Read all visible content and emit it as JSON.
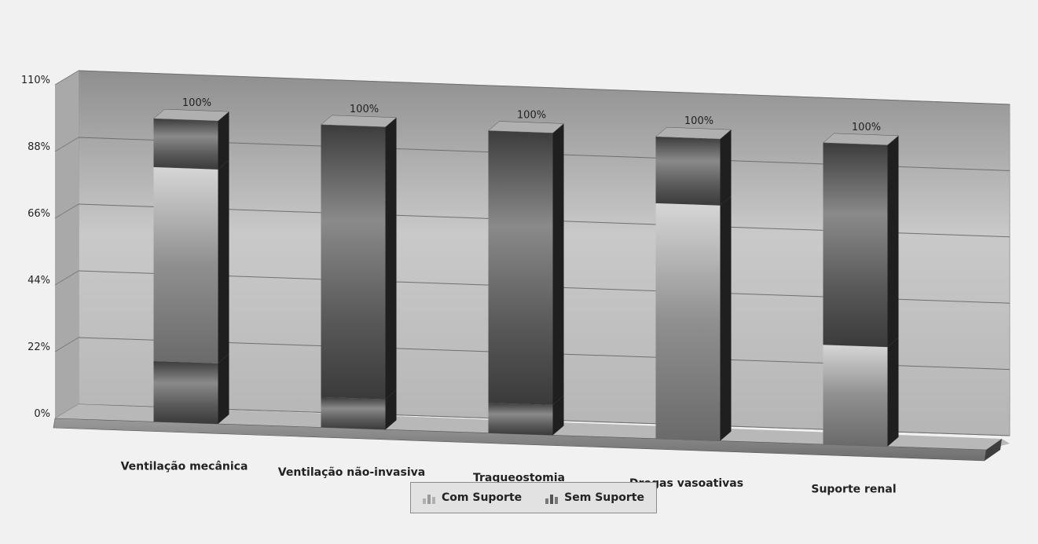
{
  "chart_data": {
    "type": "bar",
    "stacked": true,
    "three_d": true,
    "categories": [
      "Ventilação mecânica",
      "Ventilação não-invasiva",
      "Traqueostomia",
      "Drogas vasoativas",
      "Suporte renal"
    ],
    "series": [
      {
        "name": "Com Suporte",
        "values": [
          100,
          0,
          0,
          100,
          0
        ],
        "color": "#9a9a9a"
      },
      {
        "name": "Sem Suporte",
        "values": [
          0,
          100,
          100,
          0,
          100
        ],
        "color": "#555555"
      }
    ],
    "stack_segments": [
      [
        {
          "from": 0,
          "to": 20,
          "shade": "dark"
        },
        {
          "from": 20,
          "to": 84,
          "shade": "light"
        },
        {
          "from": 84,
          "to": 100,
          "shade": "dark"
        }
      ],
      [
        {
          "from": 0,
          "to": 10,
          "shade": "dark"
        },
        {
          "from": 10,
          "to": 100,
          "shade": "dark"
        }
      ],
      [
        {
          "from": 0,
          "to": 10,
          "shade": "dark"
        },
        {
          "from": 10,
          "to": 100,
          "shade": "dark"
        }
      ],
      [
        {
          "from": 0,
          "to": 78,
          "shade": "light"
        },
        {
          "from": 78,
          "to": 100,
          "shade": "dark"
        }
      ],
      [
        {
          "from": 0,
          "to": 33,
          "shade": "light"
        },
        {
          "from": 33,
          "to": 100,
          "shade": "dark"
        }
      ]
    ],
    "total_labels": [
      "100%",
      "100%",
      "100%",
      "100%",
      "100%"
    ],
    "yticks": [
      "0%",
      "22%",
      "44%",
      "66%",
      "88%",
      "110%"
    ],
    "ylim": [
      0,
      110
    ],
    "grid": true,
    "legend": "bottom-center"
  },
  "legend": {
    "items": [
      {
        "label": "Com Suporte",
        "color": "#9a9a9a"
      },
      {
        "label": "Sem Suporte",
        "color": "#555555"
      }
    ]
  }
}
